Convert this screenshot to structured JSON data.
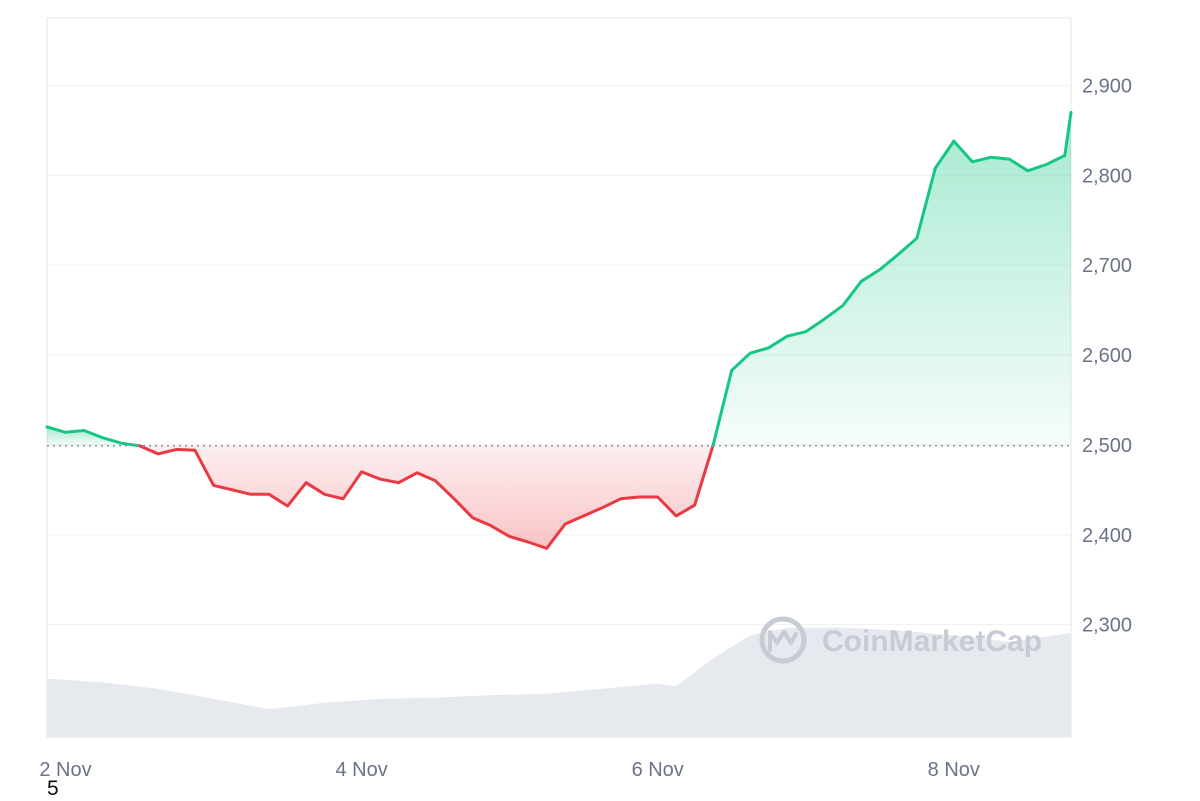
{
  "footnote": "5",
  "watermark": {
    "text": "CoinMarketCap",
    "icon": "coinmarketcap-logo-icon"
  },
  "colors": {
    "up": "#16c784",
    "down": "#ea3943",
    "up_fill": "#16c784",
    "down_fill": "#ea3943",
    "volume": "#e6e9ee",
    "grid": "#eef0f3",
    "baseline": "#8a919e",
    "axis_text": "#6b7386"
  },
  "chart_data": {
    "type": "line",
    "title": "",
    "xlabel": "",
    "ylabel": "",
    "x_range": [
      "2024-11-01T21:00",
      "2024-11-08T19:00"
    ],
    "ylim": [
      2175,
      2975
    ],
    "y_ticks": [
      2300,
      2400,
      2500,
      2600,
      2700,
      2800,
      2900
    ],
    "y_tick_labels": [
      "2,300",
      "2,400",
      "2,500",
      "2,600",
      "2,700",
      "2,800",
      "2,900"
    ],
    "x_ticks": [
      "2024-11-02T00:00",
      "2024-11-04T00:00",
      "2024-11-06T00:00",
      "2024-11-08T00:00"
    ],
    "x_tick_labels": [
      "2 Nov",
      "4 Nov",
      "6 Nov",
      "8 Nov"
    ],
    "baseline_value": 2499,
    "grid": true,
    "y_axis_position": "right",
    "series": [
      {
        "x": [
          "2024-11-01T21:00",
          "2024-11-02T00:00",
          "2024-11-02T03:00",
          "2024-11-02T06:00",
          "2024-11-02T09:00",
          "2024-11-02T12:00",
          "2024-11-02T15:00",
          "2024-11-02T18:00",
          "2024-11-02T21:00",
          "2024-11-03T00:00",
          "2024-11-03T03:00",
          "2024-11-03T06:00",
          "2024-11-03T09:00",
          "2024-11-03T12:00",
          "2024-11-03T15:00",
          "2024-11-03T18:00",
          "2024-11-03T21:00",
          "2024-11-04T00:00",
          "2024-11-04T03:00",
          "2024-11-04T06:00",
          "2024-11-04T09:00",
          "2024-11-04T12:00",
          "2024-11-04T15:00",
          "2024-11-04T18:00",
          "2024-11-04T21:00",
          "2024-11-05T00:00",
          "2024-11-05T03:00",
          "2024-11-05T06:00",
          "2024-11-05T09:00",
          "2024-11-05T12:00",
          "2024-11-05T15:00",
          "2024-11-05T18:00",
          "2024-11-05T21:00",
          "2024-11-06T00:00",
          "2024-11-06T03:00",
          "2024-11-06T06:00",
          "2024-11-06T09:00",
          "2024-11-06T12:00",
          "2024-11-06T15:00",
          "2024-11-06T18:00",
          "2024-11-06T21:00",
          "2024-11-07T00:00",
          "2024-11-07T03:00",
          "2024-11-07T06:00",
          "2024-11-07T09:00",
          "2024-11-07T12:00",
          "2024-11-07T15:00",
          "2024-11-07T18:00",
          "2024-11-07T21:00",
          "2024-11-08T00:00",
          "2024-11-08T03:00",
          "2024-11-08T06:00",
          "2024-11-08T09:00",
          "2024-11-08T12:00",
          "2024-11-08T15:00",
          "2024-11-08T18:00",
          "2024-11-08T19:00"
        ],
        "values": [
          2520,
          2514,
          2516,
          2508,
          2502,
          2499,
          2490,
          2495,
          2494,
          2455,
          2450,
          2445,
          2445,
          2432,
          2458,
          2445,
          2440,
          2470,
          2462,
          2458,
          2469,
          2460,
          2440,
          2419,
          2410,
          2398,
          2392,
          2385,
          2412,
          2421,
          2430,
          2440,
          2442,
          2442,
          2421,
          2433,
          2500,
          2583,
          2602,
          2608,
          2621,
          2626,
          2640,
          2655,
          2682,
          2695,
          2712,
          2730,
          2808,
          2838,
          2815,
          2820,
          2818,
          2805,
          2812,
          2822,
          2870
        ]
      }
    ],
    "volume": {
      "x": [
        "2024-11-01T21:00",
        "2024-11-02T06:00",
        "2024-11-02T15:00",
        "2024-11-03T00:00",
        "2024-11-03T09:00",
        "2024-11-03T18:00",
        "2024-11-04T03:00",
        "2024-11-04T12:00",
        "2024-11-04T21:00",
        "2024-11-05T06:00",
        "2024-11-05T15:00",
        "2024-11-06T00:00",
        "2024-11-06T03:00",
        "2024-11-06T09:00",
        "2024-11-06T15:00",
        "2024-11-06T21:00",
        "2024-11-07T06:00",
        "2024-11-07T15:00",
        "2024-11-08T00:00",
        "2024-11-08T09:00",
        "2024-11-08T19:00"
      ],
      "relative_levels": [
        0.46,
        0.43,
        0.38,
        0.3,
        0.22,
        0.27,
        0.3,
        0.31,
        0.33,
        0.34,
        0.38,
        0.42,
        0.4,
        0.62,
        0.8,
        0.86,
        0.86,
        0.84,
        0.8,
        0.75,
        0.82
      ]
    }
  }
}
